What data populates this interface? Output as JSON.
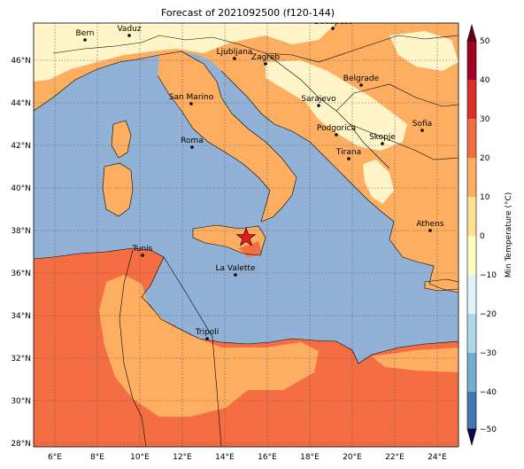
{
  "title": "Forecast of 2021092500 (f120-144)",
  "lon_ticks": [
    "6°E",
    "8°E",
    "10°E",
    "12°E",
    "14°E",
    "16°E",
    "18°E",
    "20°E",
    "22°E",
    "24°E"
  ],
  "lat_ticks": [
    "28°N",
    "30°N",
    "32°N",
    "34°N",
    "36°N",
    "38°N",
    "40°N",
    "42°N",
    "44°N",
    "46°N"
  ],
  "colorbar": {
    "label": "Min Temperature (°C)",
    "ticks": [
      "50",
      "40",
      "30",
      "20",
      "10",
      "0",
      "−10",
      "−20",
      "−30",
      "−40",
      "−50"
    ],
    "colors": [
      "#a50026",
      "#d73027",
      "#f46d43",
      "#fdae61",
      "#fee090",
      "#ffffbf",
      "#e0f3f8",
      "#abd9e9",
      "#74add1",
      "#4575b4",
      "#313695"
    ]
  },
  "cities": [
    {
      "name": "Bern"
    },
    {
      "name": "Vaduz"
    },
    {
      "name": "Budapest"
    },
    {
      "name": "Ljubljana"
    },
    {
      "name": "Zagreb"
    },
    {
      "name": "Belgrade"
    },
    {
      "name": "San Marino"
    },
    {
      "name": "Sarajevo"
    },
    {
      "name": "Sofia"
    },
    {
      "name": "Podgorica"
    },
    {
      "name": "Skopje"
    },
    {
      "name": "Roma"
    },
    {
      "name": "Tirana"
    },
    {
      "name": "Athens"
    },
    {
      "name": "Tunis"
    },
    {
      "name": "La Valette"
    },
    {
      "name": "Tripoli"
    }
  ],
  "marker": {
    "type": "star",
    "color": "#e41a1c"
  }
}
